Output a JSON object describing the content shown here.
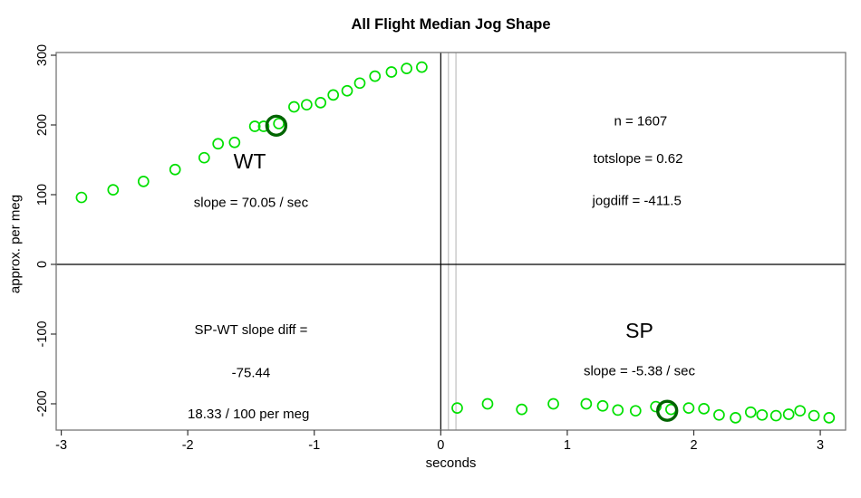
{
  "title": "All Flight Median Jog Shape",
  "axes": {
    "xlabel": "seconds",
    "ylabel": "approx. per meg",
    "x_ticks": [
      -3,
      -2,
      -1,
      0,
      1,
      2,
      3
    ],
    "y_ticks": [
      -200,
      -100,
      0,
      100,
      200,
      300
    ]
  },
  "colors": {
    "point_green": "#00E000",
    "highlight_ring": "#006400",
    "box": "#777777",
    "tick": "#333333",
    "ref_line": "#000000",
    "jog_line_gray": "#C9C9C9",
    "text": "#000000"
  },
  "chart_data": {
    "type": "scatter",
    "title": "All Flight Median Jog Shape",
    "xlabel": "seconds",
    "ylabel": "approx. per meg",
    "xlim": [
      -3.04,
      3.2
    ],
    "ylim": [
      -237.7,
      303.9
    ],
    "grid": false,
    "legend": "none",
    "series": [
      {
        "name": "WT",
        "points": [
          [
            -2.84,
            96
          ],
          [
            -2.59,
            107
          ],
          [
            -2.35,
            119
          ],
          [
            -2.1,
            136
          ],
          [
            -1.87,
            153
          ],
          [
            -1.76,
            173
          ],
          [
            -1.63,
            175
          ],
          [
            -1.47,
            198
          ],
          [
            -1.4,
            198
          ],
          [
            -1.28,
            202
          ],
          [
            -1.16,
            226
          ],
          [
            -1.06,
            229
          ],
          [
            -0.95,
            232
          ],
          [
            -0.85,
            243
          ],
          [
            -0.74,
            249
          ],
          [
            -0.64,
            260
          ],
          [
            -0.52,
            270
          ],
          [
            -0.39,
            276
          ],
          [
            -0.27,
            281
          ],
          [
            -0.15,
            283
          ]
        ]
      },
      {
        "name": "SP",
        "points": [
          [
            0.13,
            -206
          ],
          [
            0.37,
            -200
          ],
          [
            0.64,
            -208
          ],
          [
            0.89,
            -200
          ],
          [
            1.15,
            -200
          ],
          [
            1.28,
            -203
          ],
          [
            1.4,
            -209
          ],
          [
            1.54,
            -210
          ],
          [
            1.7,
            -204
          ],
          [
            1.82,
            -208
          ],
          [
            1.96,
            -206
          ],
          [
            2.08,
            -207
          ],
          [
            2.2,
            -216
          ],
          [
            2.33,
            -220
          ],
          [
            2.45,
            -212
          ],
          [
            2.54,
            -216
          ],
          [
            2.65,
            -217
          ],
          [
            2.75,
            -215
          ],
          [
            2.84,
            -210
          ],
          [
            2.95,
            -217
          ],
          [
            3.07,
            -220
          ]
        ]
      }
    ],
    "highlighted_points": [
      {
        "series": "WT",
        "x": -1.3,
        "y": 199
      },
      {
        "series": "SP",
        "x": 1.79,
        "y": -210
      }
    ],
    "reference_lines": {
      "horizontal_black": [
        0
      ],
      "vertical_black": [
        0
      ],
      "vertical_gray": [
        0.06,
        0.12
      ]
    },
    "annotations": [
      {
        "text": "WT",
        "x": -1.51,
        "y": 148,
        "size": 23
      },
      {
        "text": "slope = 70.05 / sec",
        "x": -1.5,
        "y": 89,
        "size": 15
      },
      {
        "text": "n = 1607",
        "x": 1.58,
        "y": 206,
        "size": 15
      },
      {
        "text": "totslope = 0.62",
        "x": 1.56,
        "y": 152,
        "size": 15
      },
      {
        "text": "jogdiff = -411.5",
        "x": 1.55,
        "y": 92,
        "size": 15
      },
      {
        "text": "SP-WT slope diff =",
        "x": -1.5,
        "y": -93,
        "size": 15
      },
      {
        "text": "-75.44",
        "x": -1.5,
        "y": -155,
        "size": 15
      },
      {
        "text": "18.33 / 100 per meg",
        "x": -1.52,
        "y": -214,
        "size": 15
      },
      {
        "text": "SP",
        "x": 1.57,
        "y": -95,
        "size": 23
      },
      {
        "text": "slope = -5.38 / sec",
        "x": 1.57,
        "y": -152,
        "size": 15
      }
    ]
  }
}
